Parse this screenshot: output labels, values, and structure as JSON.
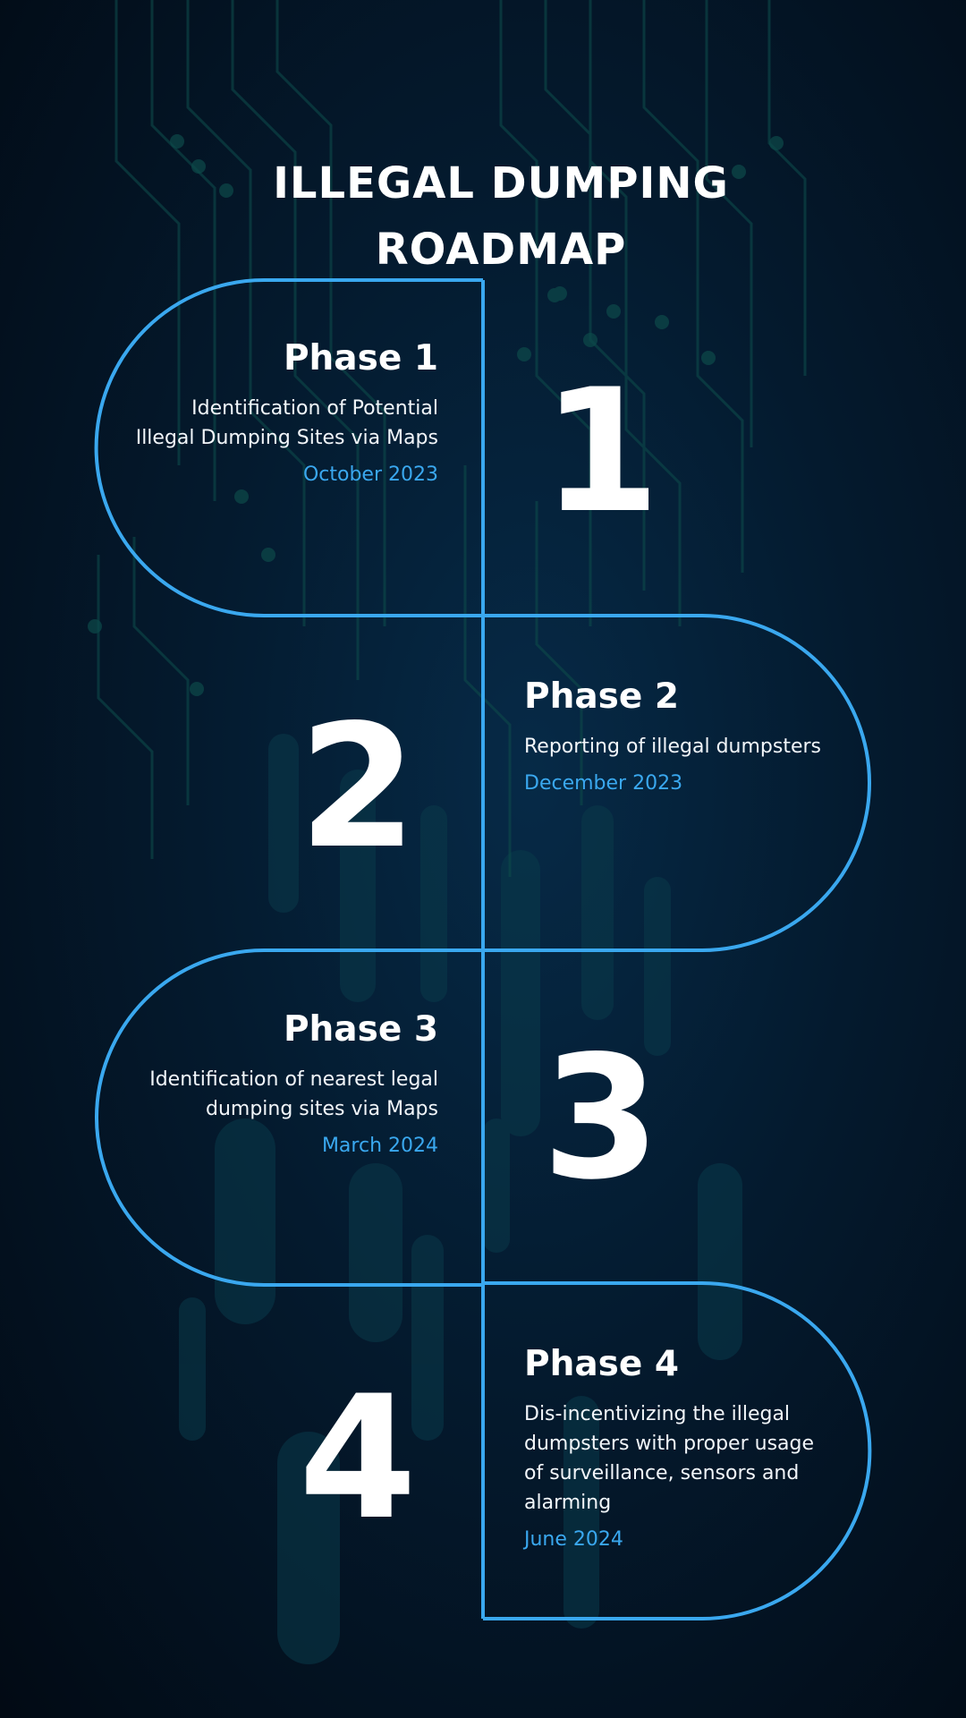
{
  "title": {
    "line1": "ILLEGAL DUMPING",
    "line2": "ROADMAP"
  },
  "accent_color": "#3aa8ef",
  "phases": [
    {
      "number": "1",
      "title": "Phase 1",
      "description": [
        "Identification of Potential",
        "Illegal Dumping Sites via Maps"
      ],
      "date": "October 2023"
    },
    {
      "number": "2",
      "title": "Phase 2",
      "description": [
        "Reporting of illegal dumpsters"
      ],
      "date": "December 2023"
    },
    {
      "number": "3",
      "title": "Phase 3",
      "description": [
        "Identification of nearest legal",
        "dumping sites via Maps"
      ],
      "date": "March 2024"
    },
    {
      "number": "4",
      "title": "Phase 4",
      "description": [
        "Dis-incentivizing the illegal",
        "dumpsters with proper usage",
        "of surveillance, sensors and",
        "alarming"
      ],
      "date": "June 2024"
    }
  ]
}
